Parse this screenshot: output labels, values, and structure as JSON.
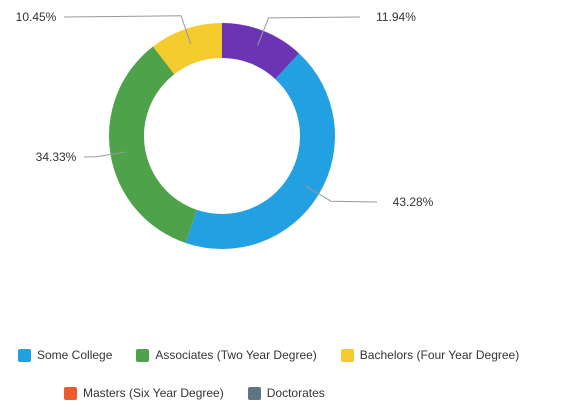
{
  "chart_data": {
    "type": "pie",
    "donut": true,
    "slices": [
      {
        "name": "",
        "value": 0,
        "color": "#5f5f5f",
        "label": ""
      },
      {
        "name": "Some College",
        "value": 43.28,
        "color": "#22a0e2",
        "label": "43.28%"
      },
      {
        "name": "Associates (Two Year Degree)",
        "value": 34.33,
        "color": "#4ea24a",
        "label": "34.33%"
      },
      {
        "name": "Bachelors (Four Year Degree)",
        "value": 10.45,
        "color": "#f5cc2f",
        "label": "10.45%"
      },
      {
        "name": "Masters (Six Year Degree)",
        "value": 0,
        "color": "#ec5a32",
        "label": ""
      },
      {
        "name": "Doctorates",
        "value": 0,
        "color": "#5c7682",
        "label": ""
      },
      {
        "name": "",
        "value": 11.94,
        "color": "#6a34b5",
        "label": "11.94%"
      }
    ],
    "legend_placement": "bottom"
  },
  "legend": {
    "row1": [
      {
        "label": "Some College",
        "color": "#22a0e2"
      },
      {
        "label": "Associates (Two Year Degree)",
        "color": "#4ea24a"
      },
      {
        "label": "Bachelors (Four Year Degree)",
        "color": "#f5cc2f"
      }
    ],
    "row2": [
      {
        "label": "Masters (Six Year Degree)",
        "color": "#ec5a32"
      },
      {
        "label": "Doctorates",
        "color": "#5c7682"
      }
    ]
  }
}
